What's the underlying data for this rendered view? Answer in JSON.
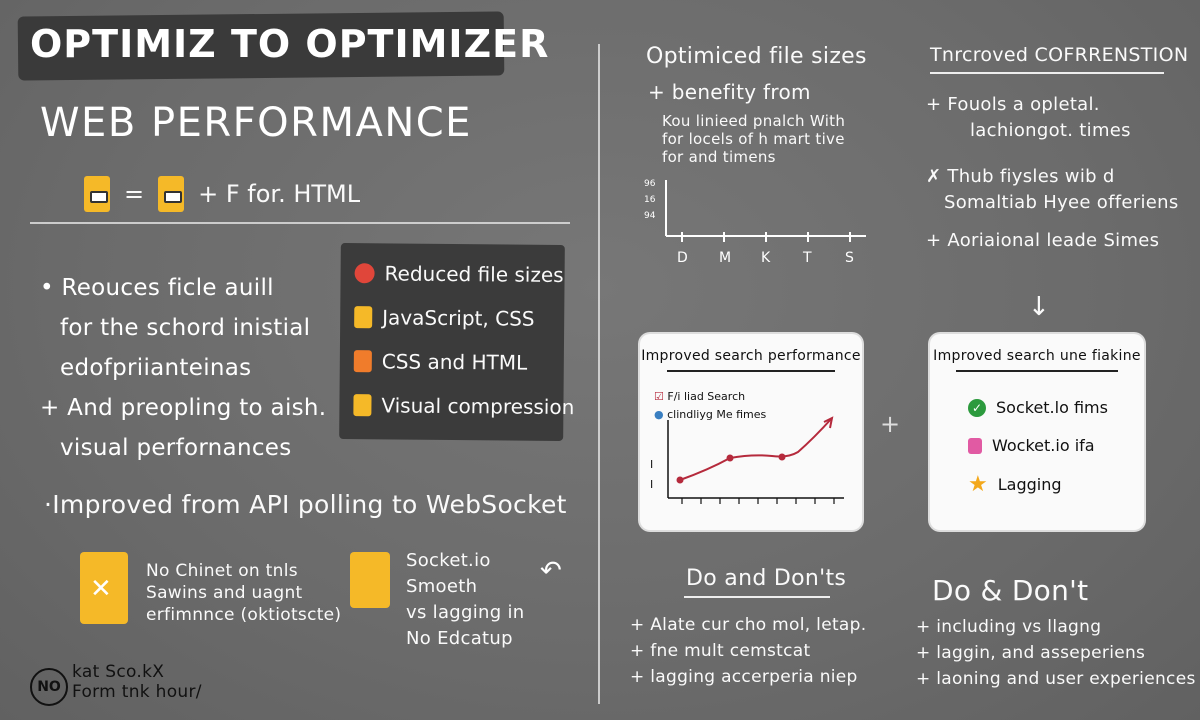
{
  "title": "OPTIMIZ TO OPTIMIZER",
  "subtitle": "WEB PERFORMANCE",
  "equation": {
    "equals": "=",
    "rest": "+ F for. HTML"
  },
  "left_bullets": [
    "• Reouces ficle auill",
    "for the schord inistial",
    "edofpriianteinas",
    "+ And preopling to aish.",
    "visual perfornances"
  ],
  "panel_items": [
    {
      "label": "Reduced file sizes",
      "icon": "flag-icon"
    },
    {
      "label": "JavaScript, CSS",
      "icon": "file-icon"
    },
    {
      "label": "CSS and HTML",
      "icon": "bag-icon"
    },
    {
      "label": "Visual compression",
      "icon": "file-icon"
    }
  ],
  "api_heading": "·Improved from API polling to WebSocket",
  "api_note": [
    "No Chinet on tnls",
    "Sawins and uagnt",
    "erfimnnce (oktiotscte)"
  ],
  "socket_text": [
    "Socket.io",
    "Smoeth",
    "vs lagging in",
    "No Edcatup"
  ],
  "footer_badge": "NO",
  "footer_text": [
    "kat Sco.kX",
    "Form tnk hour/"
  ],
  "right_top": {
    "heading": "Optimiced file sizes",
    "sub": "+ benefity from",
    "notes": [
      "Kou linieed pnalch With",
      "for locels of h mart tive",
      "for and timens"
    ],
    "chart_y_labels": [
      "96",
      "16",
      "94"
    ],
    "chart_x_labels": [
      "D",
      "M",
      "K",
      "T",
      "S"
    ]
  },
  "right_top2": {
    "heading": "Tnrcroved COFRRENSTION",
    "items": [
      "+ Fouols a opletal.",
      "lachiongot. times",
      "✗ Thub fiysles wib d",
      "Somaltiab Hyee offeriens",
      "+ Aoriaional leade Simes"
    ]
  },
  "card1": {
    "title": "Improved search performance",
    "legend1": "F/i liad Search",
    "legend2": "clindliyg Me fimes",
    "y_labels": [
      "I",
      "I"
    ]
  },
  "card2": {
    "title": "Improved search une fiakine",
    "items": [
      "Socket.lo fims",
      "Wocket.io ifa",
      "Lagging"
    ]
  },
  "do_dont_1": {
    "heading": "Do and Don'ts",
    "items": [
      "+ Alate cur cho mol, letap.",
      "+ fne mult cemstcat",
      "+ lagging accerperia niep"
    ]
  },
  "do_dont_2": {
    "heading": "Do & Don't",
    "items": [
      "+ including vs llagng",
      "+ laggin, and asseperiens",
      "+ laoning and user experiences"
    ]
  },
  "colors": {
    "accent_yellow": "#f5b928",
    "panel_dark": "#3b3b3b",
    "board": "#6f6f6f",
    "chart_red": "#b52a3c"
  }
}
